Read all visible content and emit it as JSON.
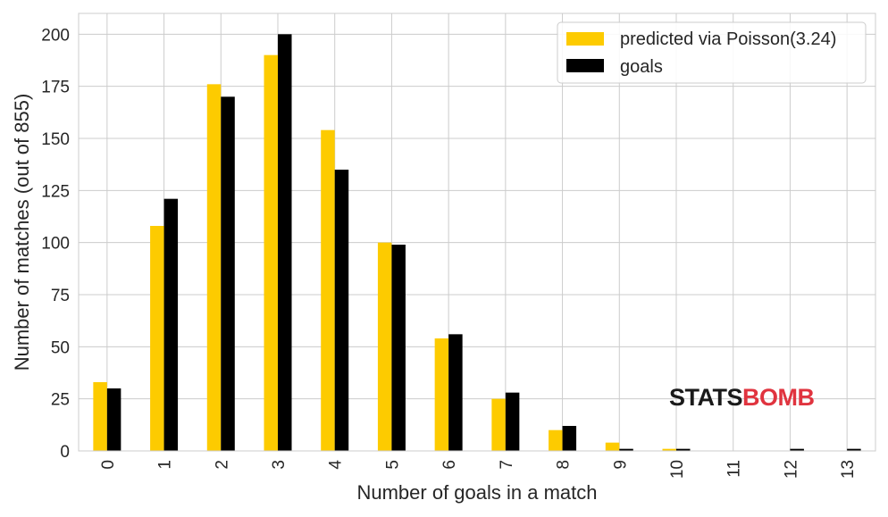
{
  "chart_data": {
    "type": "bar",
    "xlabel": "Number of goals in a match",
    "ylabel": "Number of matches (out of 855)",
    "categories": [
      "0",
      "1",
      "2",
      "3",
      "4",
      "5",
      "6",
      "7",
      "8",
      "9",
      "10",
      "11",
      "12",
      "13"
    ],
    "series": [
      {
        "name": "predicted via Poisson(3.24)",
        "color": "#fdcb00",
        "values": [
          33,
          108,
          176,
          190,
          154,
          100,
          54,
          25,
          10,
          4,
          1,
          0,
          0,
          0
        ]
      },
      {
        "name": "goals",
        "color": "#000000",
        "values": [
          30,
          121,
          170,
          200,
          135,
          99,
          56,
          28,
          12,
          1,
          1,
          0,
          1,
          1
        ]
      }
    ],
    "ylim": [
      0,
      210
    ],
    "yticks": [
      0,
      25,
      50,
      75,
      100,
      125,
      150,
      175,
      200
    ],
    "grid": true,
    "legend_position": "top-right"
  },
  "watermark": {
    "part1": "STATS",
    "part2": "BOMB",
    "color1": "#1a1a1a",
    "color2": "#e0343f"
  }
}
